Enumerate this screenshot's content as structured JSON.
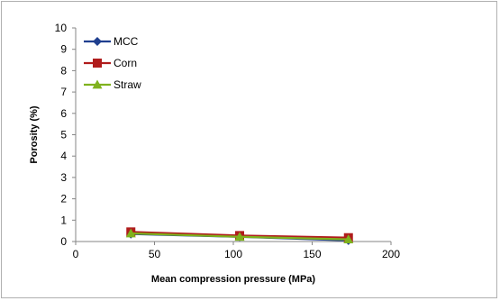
{
  "chart_data": {
    "type": "line",
    "xlabel": "Mean compression pressure (MPa)",
    "ylabel": "Porosity (%)",
    "xlim": [
      0,
      200
    ],
    "ylim": [
      0,
      10
    ],
    "x_ticks": [
      0,
      50,
      100,
      150,
      200
    ],
    "y_ticks": [
      0,
      1,
      2,
      3,
      4,
      5,
      6,
      7,
      8,
      9,
      10
    ],
    "grid": false,
    "legend_position": "top-left",
    "series": [
      {
        "name": "MCC",
        "color": "#1f3f8f",
        "marker": "diamond",
        "x": [
          35,
          104,
          173
        ],
        "y": [
          0.35,
          0.22,
          0.05
        ]
      },
      {
        "name": "Corn",
        "color": "#b01c1c",
        "marker": "square",
        "x": [
          35,
          104,
          173
        ],
        "y": [
          0.45,
          0.28,
          0.18
        ]
      },
      {
        "name": "Straw",
        "color": "#7fb21d",
        "marker": "triangle",
        "x": [
          35,
          104,
          173
        ],
        "y": [
          0.38,
          0.22,
          0.1
        ]
      }
    ]
  }
}
